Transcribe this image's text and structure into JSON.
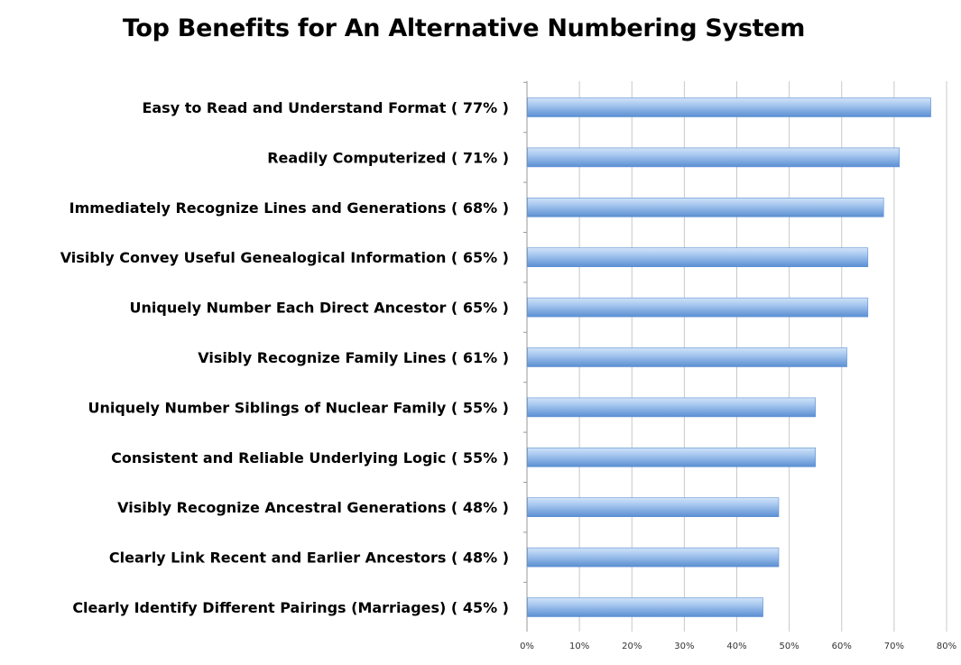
{
  "chart_data": {
    "type": "bar",
    "orientation": "horizontal",
    "title": "Top Benefits for An Alternative Numbering System",
    "xlabel": "",
    "ylabel": "",
    "categories": [
      "Easy to Read and Understand Format  ( 77% )",
      "Readily Computerized ( 71% )",
      "Immediately Recognize Lines and Generations ( 68% )",
      "Visibly Convey Useful Genealogical Information ( 65% )",
      "Uniquely Number Each Direct Ancestor ( 65% )",
      "Visibly Recognize Family Lines ( 61% )",
      "Uniquely Number Siblings of Nuclear Family ( 55% )",
      "Consistent and Reliable Underlying Logic ( 55% )",
      "Visibly Recognize Ancestral Generations ( 48% )",
      "Clearly Link Recent and Earlier Ancestors ( 48% )",
      "Clearly Identify Different Pairings (Marriages) ( 45% )"
    ],
    "values": [
      77,
      71,
      68,
      65,
      65,
      61,
      55,
      55,
      48,
      48,
      45
    ],
    "xlim": [
      0,
      80
    ],
    "ticks": [
      "0%",
      "10%",
      "20%",
      "30%",
      "40%",
      "50%",
      "60%",
      "70%",
      "80%"
    ],
    "grid": true,
    "legend": "none",
    "colors": {
      "bar_light": "#b9d4f3",
      "bar_mid": "#8cb6e8",
      "bar_dark": "#5b8fd2",
      "grid": "#c8c8c8"
    }
  }
}
